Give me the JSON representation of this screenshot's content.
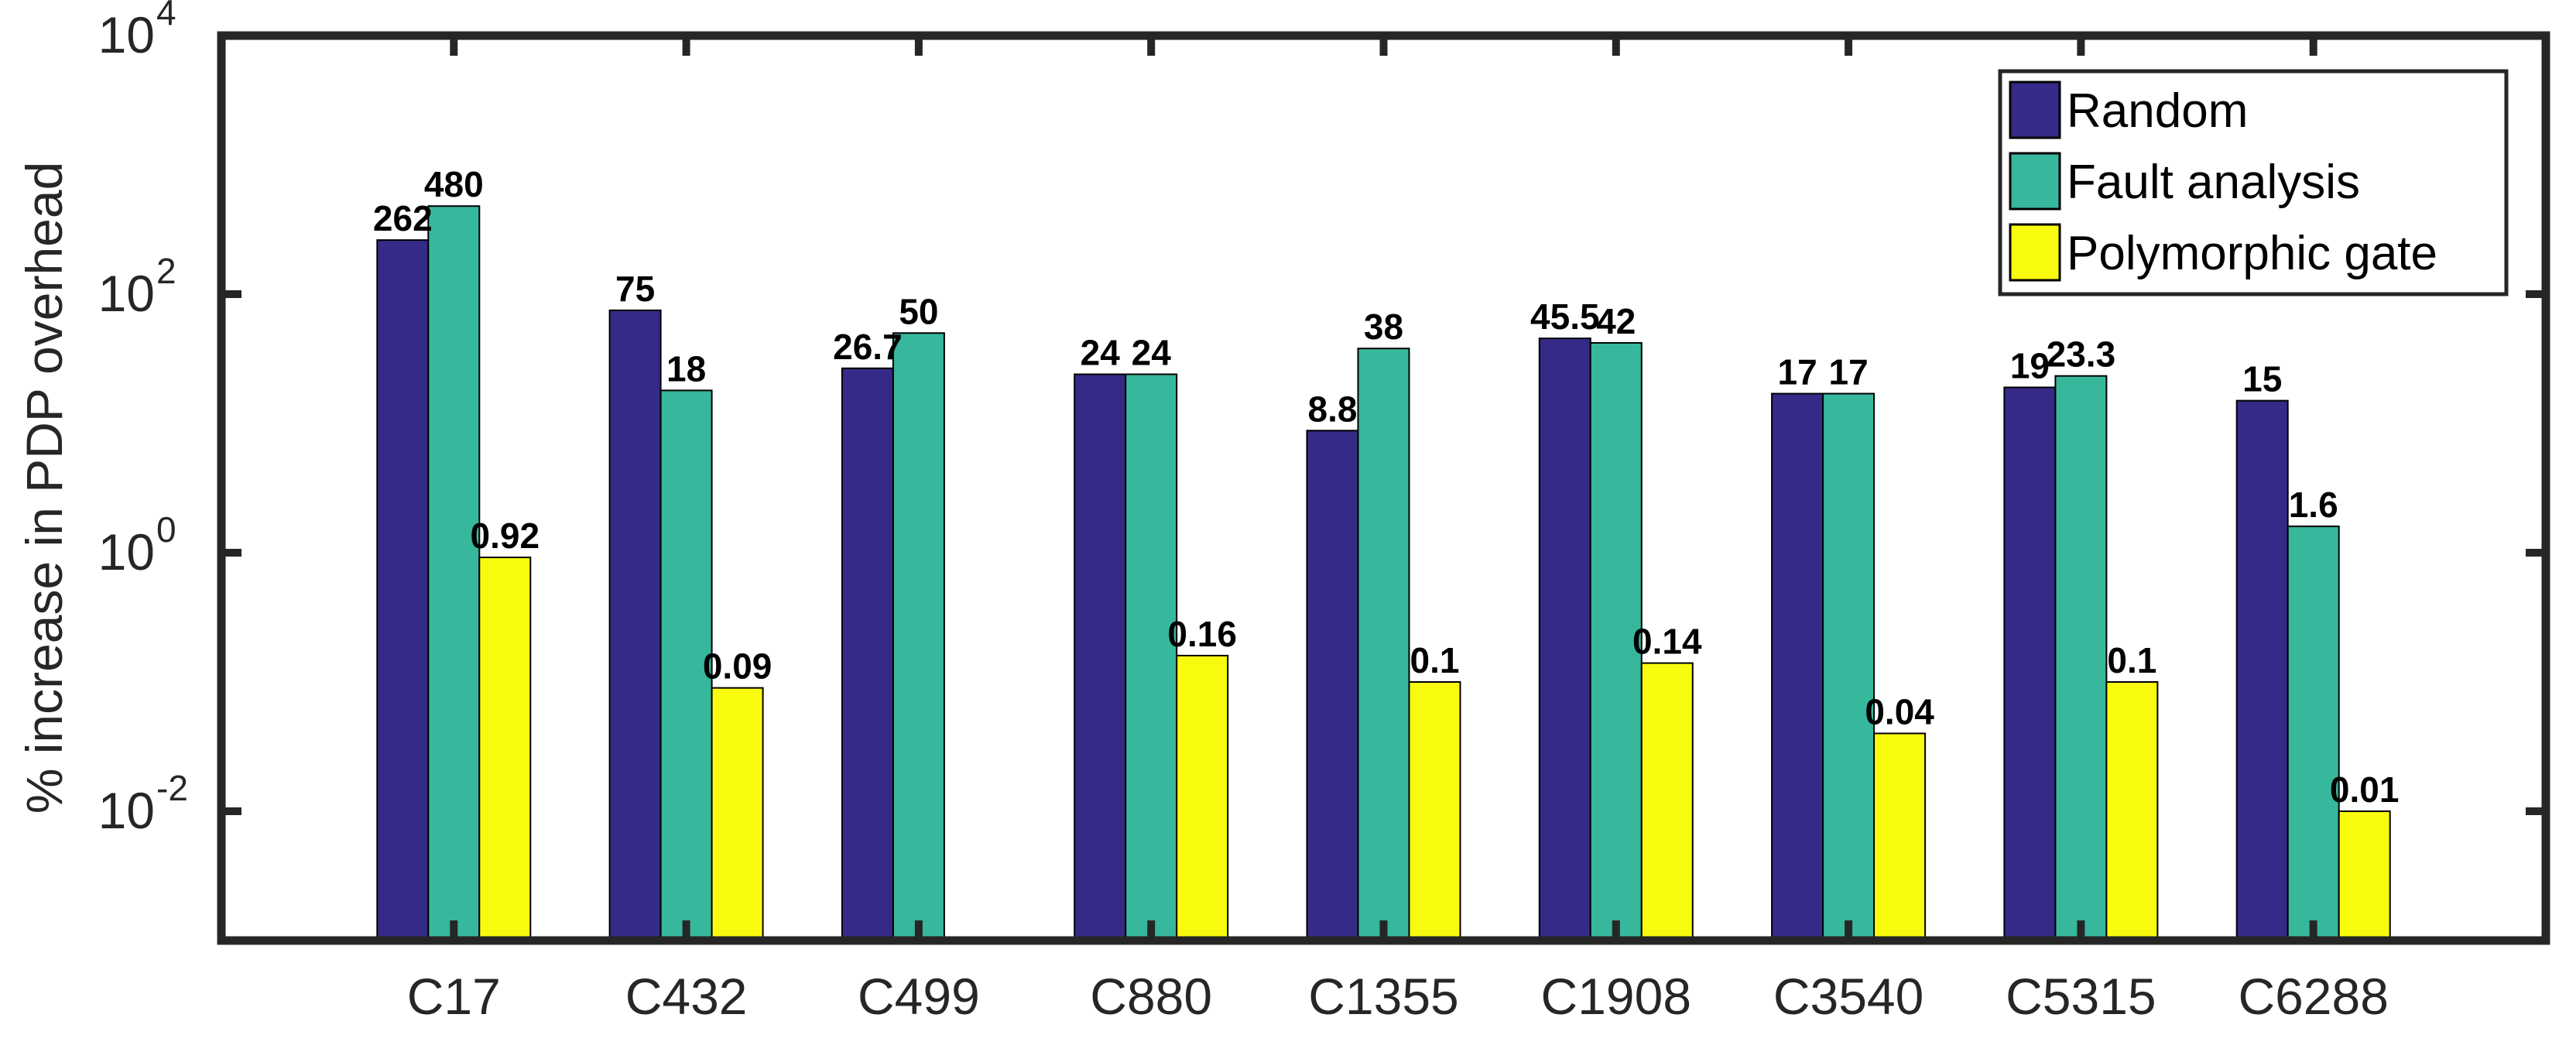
{
  "chart_data": {
    "type": "bar",
    "title": "",
    "xlabel": "",
    "ylabel": "% increase in PDP overhead",
    "yscale": "log",
    "ylim": [
      0.001,
      10000
    ],
    "yticks": [
      {
        "value": 0.01,
        "base": "10",
        "exp": "-2"
      },
      {
        "value": 1,
        "base": "10",
        "exp": "0"
      },
      {
        "value": 100,
        "base": "10",
        "exp": "2"
      },
      {
        "value": 10000,
        "base": "10",
        "exp": "4"
      }
    ],
    "legend_position": "top-right",
    "categories": [
      "C17",
      "C432",
      "C499",
      "C880",
      "C1355",
      "C1908",
      "C3540",
      "C5315",
      "C6288"
    ],
    "series": [
      {
        "name": "Random",
        "color": "#352A87",
        "values": [
          262,
          75,
          26.7,
          24,
          8.8,
          45.5,
          17,
          19,
          15
        ],
        "labels": [
          "262",
          "75",
          "26.7",
          "24",
          "8.8",
          "45.5",
          "17",
          "19",
          "15"
        ]
      },
      {
        "name": "Fault analysis",
        "color": "#37B89D",
        "values": [
          480,
          18,
          50,
          24,
          38,
          42,
          17,
          23.3,
          1.6
        ],
        "labels": [
          "480",
          "18",
          "50",
          "24",
          "38",
          "42",
          "17",
          "23.3",
          "1.6"
        ]
      },
      {
        "name": "Polymorphic gate",
        "color": "#F9FB0E",
        "values": [
          0.92,
          0.09,
          null,
          0.16,
          0.1,
          0.14,
          0.04,
          0.1,
          0.01
        ],
        "labels": [
          "0.92",
          "0.09",
          "",
          "0.16",
          "0.1",
          "0.14",
          "0.04",
          "0.1",
          "0.01"
        ]
      }
    ]
  }
}
